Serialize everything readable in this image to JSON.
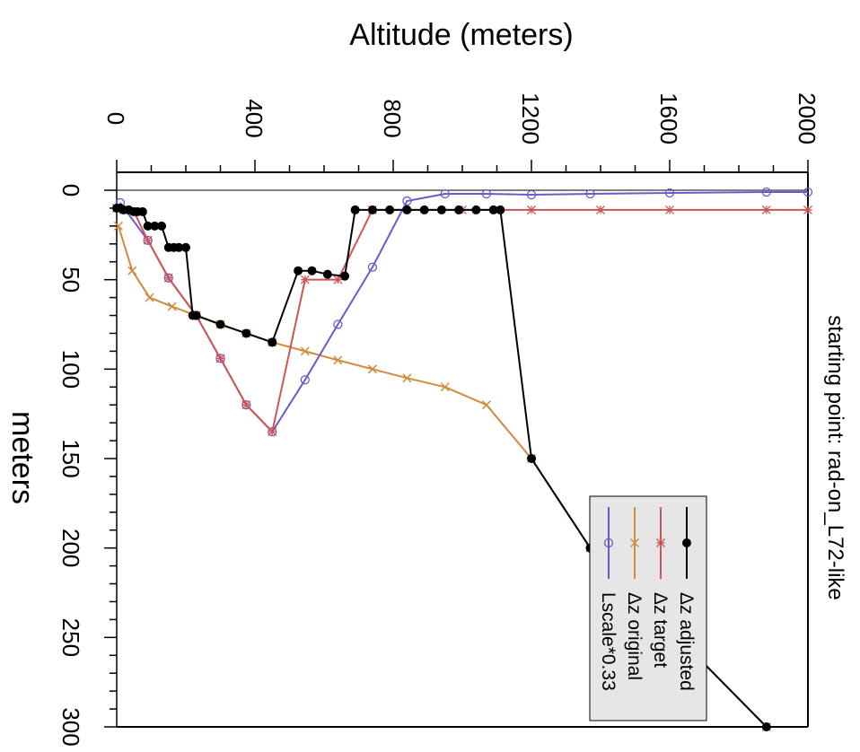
{
  "chart_data": {
    "type": "line",
    "title": "starting point: rad-on_L72-like",
    "xlabel": "Altitude (meters)",
    "ylabel": "meters",
    "xlim": [
      0,
      2000
    ],
    "ylim": [
      0,
      300
    ],
    "x_ticks": [
      "0",
      "400",
      "800",
      "1200",
      "1600",
      "2000"
    ],
    "y_ticks": [
      "0",
      "50",
      "100",
      "150",
      "200",
      "250",
      "300"
    ],
    "grid": false,
    "legend_position": "bottom-right",
    "reference_line": {
      "y": 0
    },
    "series": [
      {
        "name": "Δz adjusted",
        "color": "#000000",
        "marker": "filled-circle",
        "x": [
          0,
          10,
          20,
          35,
          50,
          60,
          75,
          90,
          110,
          130,
          150,
          165,
          180,
          200,
          220,
          230,
          300,
          375,
          450,
          450,
          525,
          565,
          610,
          660,
          690,
          740,
          790,
          840,
          890,
          940,
          990,
          1040,
          1090,
          1110,
          1200,
          1370,
          1880
        ],
        "y": [
          10,
          10,
          11,
          11,
          12,
          12,
          12,
          20,
          20,
          20,
          32,
          32,
          32,
          32,
          70,
          70,
          75,
          80,
          85,
          85,
          45,
          45,
          47,
          48,
          11,
          11,
          11,
          11,
          11,
          11,
          11,
          11,
          11,
          11,
          150,
          200,
          300
        ]
      },
      {
        "name": "Δz target",
        "color": "#cc5555",
        "marker": "star",
        "x": [
          0,
          10,
          20,
          50,
          90,
          150,
          230,
          300,
          375,
          450,
          545,
          640,
          740,
          1000,
          1200,
          1400,
          1600,
          1880,
          2000
        ],
        "y": [
          10,
          10,
          11,
          12,
          28,
          49,
          70,
          94,
          120,
          135,
          50,
          50,
          11,
          11,
          11,
          11,
          11,
          11,
          11
        ]
      },
      {
        "name": "Δz original",
        "color": "#d08a3c",
        "marker": "x",
        "x": [
          5,
          45,
          95,
          160,
          230,
          300,
          375,
          450,
          545,
          640,
          740,
          840,
          950,
          1070,
          1200,
          1370,
          1880
        ],
        "y": [
          20,
          45,
          60,
          65,
          70,
          75,
          80,
          85,
          90,
          95,
          100,
          105,
          110,
          120,
          150,
          200,
          300
        ]
      },
      {
        "name": "Lscale*0.33",
        "color": "#6a5acd",
        "marker": "open-circle",
        "x": [
          10,
          90,
          150,
          230,
          300,
          375,
          450,
          545,
          640,
          740,
          840,
          950,
          1070,
          1200,
          1370,
          1600,
          1880,
          2000
        ],
        "y": [
          7,
          28,
          49,
          70,
          94,
          120,
          135,
          106,
          75,
          43,
          6,
          2,
          2,
          2.5,
          2,
          1.5,
          1,
          1
        ]
      }
    ]
  }
}
